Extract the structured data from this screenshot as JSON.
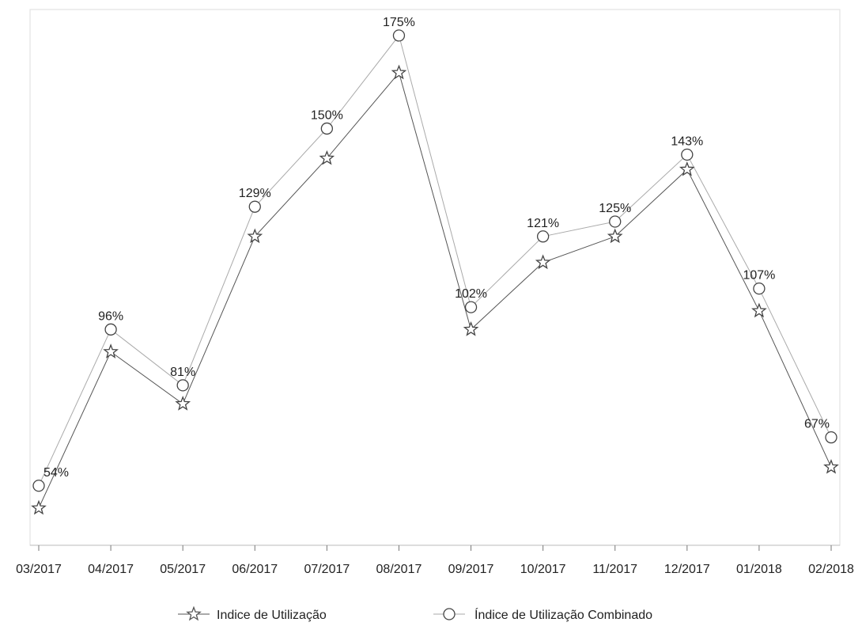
{
  "chart_data": {
    "type": "line",
    "categories": [
      "03/2017",
      "04/2017",
      "05/2017",
      "06/2017",
      "07/2017",
      "08/2017",
      "09/2017",
      "10/2017",
      "11/2017",
      "12/2017",
      "01/2018",
      "02/2018"
    ],
    "series": [
      {
        "name": "Indice de Utilização",
        "marker": "star",
        "color": "#555555",
        "values": [
          48,
          90,
          76,
          121,
          142,
          165,
          96,
          114,
          121,
          139,
          101,
          59
        ]
      },
      {
        "name": "Índice de Utilização Combinado",
        "marker": "circle",
        "color": "#aaaaaa",
        "values": [
          54,
          96,
          81,
          129,
          150,
          175,
          102,
          121,
          125,
          143,
          107,
          67
        ],
        "labels": [
          "54%",
          "96%",
          "81%",
          "129%",
          "150%",
          "175%",
          "102%",
          "121%",
          "125%",
          "143%",
          "107%",
          "67%"
        ]
      }
    ],
    "ylim": [
      38,
      182
    ],
    "title": "",
    "xlabel": "",
    "ylabel": "",
    "grid": false,
    "legend_position": "bottom"
  }
}
